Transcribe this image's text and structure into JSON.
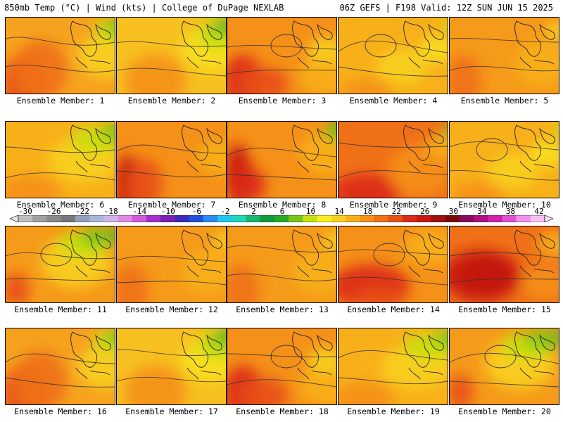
{
  "header": {
    "left": "850mb Temp (°C) | Wind (kts) | College of DuPage NEXLAB",
    "right": "06Z GEFS | F198 Valid: 12Z SUN JUN 15 2025"
  },
  "panels": [
    {
      "label": "Ensemble Member: 1",
      "style": "warm-west"
    },
    {
      "label": "Ensemble Member: 2",
      "style": "mild-green"
    },
    {
      "label": "Ensemble Member: 3",
      "style": "hot-west-low"
    },
    {
      "label": "Ensemble Member: 4",
      "style": "yellow-low"
    },
    {
      "label": "Ensemble Member: 5",
      "style": "orange"
    },
    {
      "label": "Ensemble Member: 6",
      "style": "yellow-green"
    },
    {
      "label": "Ensemble Member: 7",
      "style": "hot-west"
    },
    {
      "label": "Ensemble Member: 8",
      "style": "hot-west-green"
    },
    {
      "label": "Ensemble Member: 9",
      "style": "orange-red"
    },
    {
      "label": "Ensemble Member: 10",
      "style": "yellow-low"
    },
    {
      "label": "Ensemble Member: 11",
      "style": "orange-green"
    },
    {
      "label": "Ensemble Member: 12",
      "style": "orange"
    },
    {
      "label": "Ensemble Member: 13",
      "style": "orange"
    },
    {
      "label": "Ensemble Member: 14",
      "style": "red-low"
    },
    {
      "label": "Ensemble Member: 15",
      "style": "deep-red"
    },
    {
      "label": "Ensemble Member: 16",
      "style": "warm-west"
    },
    {
      "label": "Ensemble Member: 17",
      "style": "mild-green"
    },
    {
      "label": "Ensemble Member: 18",
      "style": "hot-west-low"
    },
    {
      "label": "Ensemble Member: 19",
      "style": "yellow-green"
    },
    {
      "label": "Ensemble Member: 20",
      "style": "orange-green"
    }
  ],
  "colorbar": {
    "labels": [
      "-30",
      "-26",
      "-22",
      "-18",
      "-14",
      "-10",
      "-6",
      "-2",
      "2",
      "6",
      "10",
      "14",
      "18",
      "22",
      "26",
      "30",
      "34",
      "38",
      "42"
    ],
    "colors": [
      "#bfbfbf",
      "#a0a0a0",
      "#8a8a8a",
      "#767676",
      "#8fa0b8",
      "#aab6d6",
      "#d2b5e8",
      "#e08ae8",
      "#d05ad8",
      "#a030c8",
      "#7a20b0",
      "#3a2ab8",
      "#2050e0",
      "#2a8cf0",
      "#20c8f0",
      "#20d8b8",
      "#18b870",
      "#129a3a",
      "#2aa82a",
      "#7cc418",
      "#c8e010",
      "#f8f020",
      "#f8d020",
      "#f8b01a",
      "#f59018",
      "#f07018",
      "#e85018",
      "#dc2a18",
      "#c81810",
      "#a01010",
      "#7a0a0a",
      "#8a0a5a",
      "#b01080",
      "#d020a8",
      "#e050d0",
      "#f090e8",
      "#f8c0f0"
    ]
  }
}
